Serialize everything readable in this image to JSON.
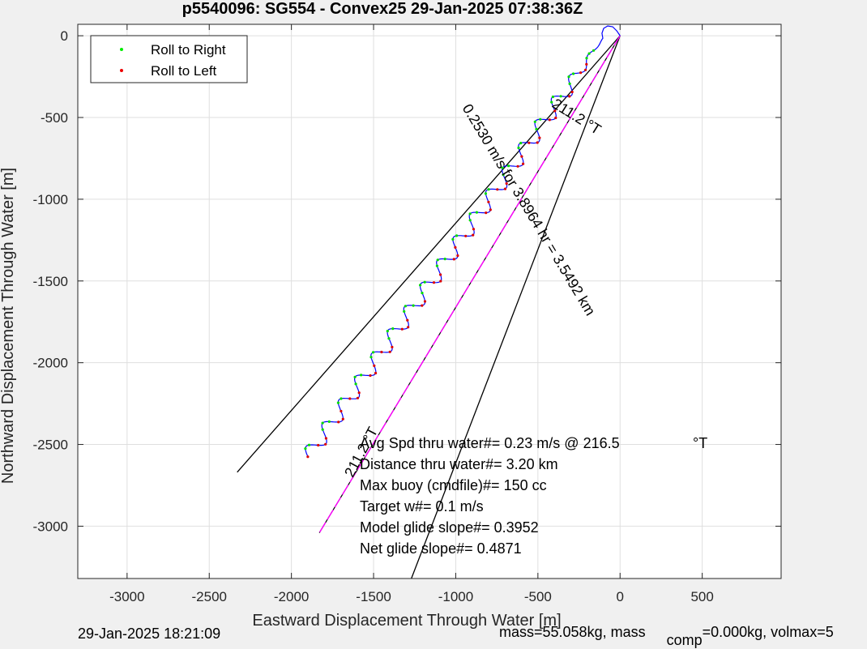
{
  "chart_data": {
    "type": "line",
    "title": "p5540096: SG554 - Convex25 29-Jan-2025 07:38:36Z",
    "xlabel": "Eastward Displacement Through Water [m]",
    "ylabel": "Northward Displacement Through Water [m]",
    "xlim": [
      -3300,
      980
    ],
    "ylim": [
      -3320,
      70
    ],
    "xticks": [
      -3000,
      -2500,
      -2000,
      -1500,
      -1000,
      -500,
      0,
      500
    ],
    "yticks": [
      0,
      -500,
      -1000,
      -1500,
      -2000,
      -2500,
      -3000
    ],
    "grid": true,
    "legend": {
      "placement": "top-left",
      "entries": [
        {
          "name": "Roll to Right",
          "color": "#00ee00"
        },
        {
          "name": "Roll to Left",
          "color": "#ee0000"
        }
      ]
    },
    "track": {
      "color": "#0000ff",
      "start": [
        0,
        0
      ],
      "end": [
        -1900,
        -2575
      ],
      "wiggle_amplitude_m": 45,
      "wiggle_count": 18
    },
    "heading_line": {
      "color": "#ff00ff",
      "x": [
        0,
        -1830
      ],
      "y": [
        0,
        -3040
      ]
    },
    "mean_line": {
      "color": "#000000",
      "x": [
        0,
        -1830
      ],
      "y": [
        0,
        -3040
      ]
    },
    "cone_lines": [
      {
        "color": "#000000",
        "x": [
          0,
          -2330
        ],
        "y": [
          0,
          -2670
        ]
      },
      {
        "color": "#000000",
        "x": [
          0,
          -1270
        ],
        "y": [
          0,
          -3320
        ]
      }
    ],
    "rotated_labels": [
      {
        "text": "211.2 °T",
        "x": -280,
        "y": -520,
        "rotation": 32
      },
      {
        "text": "0.2530 m/s for 3.8964 hr = 3.5492 km",
        "x": -580,
        "y": -1080,
        "rotation": 59
      },
      {
        "text": "211.2 °T",
        "x": -1550,
        "y": -2560,
        "rotation": -62
      }
    ],
    "annotations": [
      "Avg Spd thru water#=  0.23 m/s @ 216.5",
      "Distance thru water#=  3.20 km",
      "Max buoy (cmdfile)#= 150 cc",
      "Target w#= 0.1 m/s",
      "Model glide slope#= 0.3952",
      "Net glide slope#= 0.4871"
    ],
    "annotation_unit": "°T"
  },
  "footer": {
    "timestamp": "29-Jan-2025 18:21:09",
    "mass_text": "mass=55.058kg, mass",
    "mass_sub": "comp",
    "mass_rest": "=0.000kg, volmax=5"
  },
  "colors": {
    "background": "#f0f0f0",
    "plot_background": "#ffffff",
    "grid": "#dfdfdf",
    "axis": "#262626"
  }
}
